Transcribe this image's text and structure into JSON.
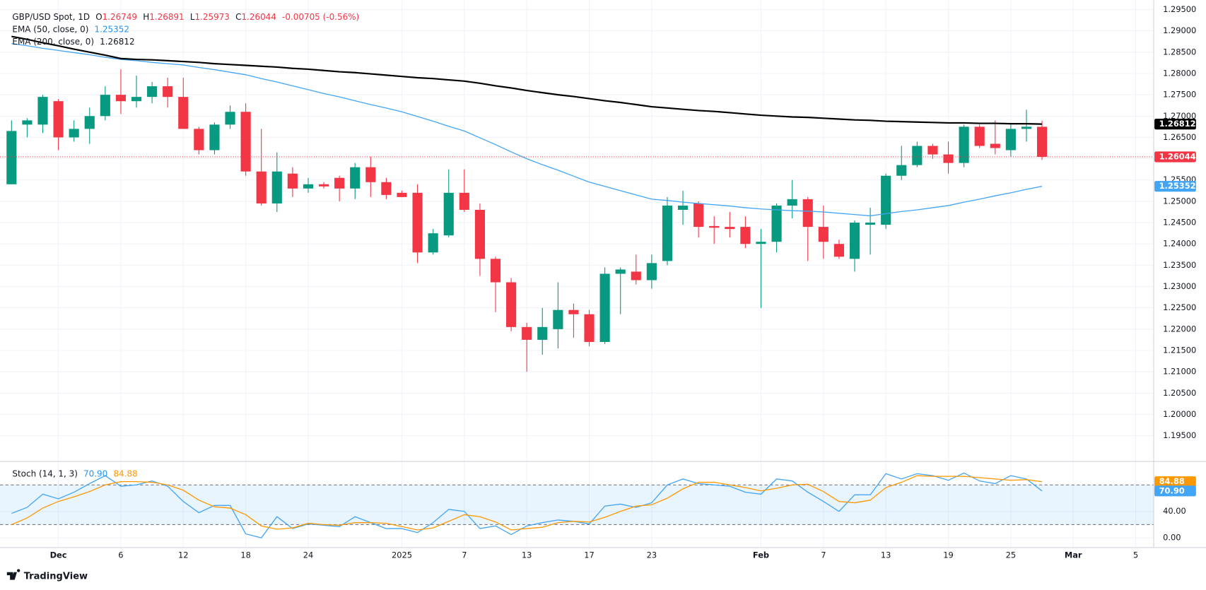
{
  "chart_data": [
    {
      "type": "candlestick",
      "title": "GBP/USD Spot, 1D",
      "legend_keys": [
        "O",
        "H",
        "L",
        "C"
      ],
      "change": "-0.00705 (-0.56%)",
      "categories": [
        null,
        null,
        null,
        "Dec",
        null,
        null,
        null,
        "6",
        null,
        null,
        null,
        "12",
        null,
        null,
        null,
        "18",
        null,
        null,
        null,
        "24",
        null,
        null,
        null,
        null,
        null,
        "2025",
        null,
        null,
        null,
        "7",
        null,
        null,
        null,
        "13",
        null,
        null,
        null,
        "17",
        null,
        null,
        null,
        "23",
        null,
        null,
        null,
        null,
        null,
        null,
        "Feb",
        null,
        null,
        null,
        "7",
        null,
        null,
        null,
        "13",
        null,
        null,
        null,
        "19",
        null,
        null,
        null,
        "25",
        null,
        null,
        null,
        "Mar",
        null,
        null,
        null,
        "5"
      ],
      "open": [
        1.254,
        1.268,
        1.268,
        1.2735,
        1.265,
        1.267,
        1.27,
        1.275,
        1.2735,
        1.2745,
        1.277,
        1.2745,
        1.267,
        1.262,
        1.268,
        1.271,
        1.257,
        1.2495,
        1.2565,
        1.253,
        1.254,
        1.2555,
        1.253,
        1.258,
        1.2545,
        1.252,
        1.252,
        1.238,
        1.242,
        1.252,
        1.248,
        1.2365,
        1.231,
        1.2205,
        1.2175,
        1.22,
        1.2245,
        1.2235,
        1.217,
        1.233,
        1.2335,
        1.2315,
        1.236,
        1.248,
        1.2495,
        1.2442,
        1.244,
        1.244,
        1.24,
        1.2405,
        1.249,
        1.2505,
        1.244,
        1.24,
        1.2365,
        1.2445,
        1.2445,
        1.256,
        1.2585,
        1.263,
        1.261,
        1.259,
        1.2675,
        1.2635,
        1.262,
        1.267,
        1.26749,
        null,
        null,
        null,
        null,
        null,
        null
      ],
      "high": [
        1.269,
        1.2695,
        1.275,
        1.274,
        1.269,
        1.272,
        1.277,
        1.281,
        1.2795,
        1.278,
        1.279,
        1.279,
        1.2675,
        1.2685,
        1.2725,
        1.273,
        1.267,
        1.2615,
        1.258,
        1.2555,
        1.2545,
        1.256,
        1.259,
        1.2605,
        1.2555,
        1.2525,
        1.254,
        1.2435,
        1.2575,
        1.2575,
        1.2495,
        1.237,
        1.232,
        1.2215,
        1.225,
        1.231,
        1.226,
        1.2245,
        1.2345,
        1.2345,
        1.2375,
        1.2375,
        1.251,
        1.2525,
        1.25,
        1.2465,
        1.2475,
        1.2465,
        1.2435,
        1.2495,
        1.255,
        1.251,
        1.249,
        1.241,
        1.2455,
        1.2485,
        1.2565,
        1.263,
        1.264,
        1.2635,
        1.264,
        1.268,
        1.268,
        1.269,
        1.268,
        1.2715,
        1.26891,
        null,
        null,
        null,
        null,
        null,
        null
      ],
      "low": [
        1.254,
        1.265,
        1.266,
        1.262,
        1.264,
        1.2635,
        1.269,
        1.2705,
        1.272,
        1.273,
        1.272,
        1.267,
        1.261,
        1.261,
        1.267,
        1.256,
        1.249,
        1.2475,
        1.251,
        1.252,
        1.253,
        1.25,
        1.2505,
        1.251,
        1.2505,
        1.251,
        1.2355,
        1.2375,
        1.2415,
        1.2475,
        1.2325,
        1.224,
        1.2195,
        1.21,
        1.214,
        1.2155,
        1.218,
        1.216,
        1.2165,
        1.2235,
        1.2305,
        1.2295,
        1.235,
        1.2445,
        1.2415,
        1.24,
        1.2415,
        1.239,
        1.225,
        1.238,
        1.246,
        1.236,
        1.2365,
        1.2365,
        1.2335,
        1.2375,
        1.2435,
        1.255,
        1.258,
        1.26,
        1.2565,
        1.258,
        1.2625,
        1.261,
        1.2605,
        1.264,
        1.25973,
        null,
        null,
        null,
        null,
        null,
        null
      ],
      "close": [
        1.2665,
        1.269,
        1.2745,
        1.265,
        1.267,
        1.27,
        1.275,
        1.2735,
        1.2745,
        1.277,
        1.2745,
        1.267,
        1.262,
        1.268,
        1.271,
        1.257,
        1.2495,
        1.257,
        1.253,
        1.254,
        1.2535,
        1.253,
        1.258,
        1.2545,
        1.2515,
        1.251,
        1.238,
        1.2425,
        1.252,
        1.248,
        1.2365,
        1.231,
        1.2205,
        1.2175,
        1.2205,
        1.2245,
        1.2235,
        1.217,
        1.233,
        1.234,
        1.2315,
        1.2355,
        1.249,
        1.249,
        1.244,
        1.2438,
        1.2435,
        1.24,
        1.2405,
        1.249,
        1.2505,
        1.244,
        1.2405,
        1.237,
        1.245,
        1.245,
        1.256,
        1.2585,
        1.263,
        1.261,
        1.259,
        1.2675,
        1.263,
        1.2625,
        1.267,
        1.2675,
        1.26044,
        null,
        null,
        null,
        null,
        null,
        null
      ],
      "up_color": "#089981",
      "down_color": "#f23645",
      "series": [
        {
          "name": "EMA (50, close, 0)",
          "color": "#42a5f5",
          "values": [
            1.287,
            1.2865,
            1.2859,
            1.2854,
            1.2849,
            1.2844,
            1.2838,
            1.2833,
            1.283,
            1.2826,
            1.2823,
            1.282,
            1.2814,
            1.2809,
            1.2803,
            1.2797,
            1.2788,
            1.278,
            1.2771,
            1.2762,
            1.2753,
            1.2745,
            1.2736,
            1.2727,
            1.2719,
            1.271,
            1.2699,
            1.2688,
            1.2676,
            1.2665,
            1.2649,
            1.2633,
            1.2616,
            1.26,
            1.2586,
            1.2573,
            1.2559,
            1.2545,
            1.2535,
            1.2525,
            1.2515,
            1.2505,
            1.2502,
            1.2498,
            1.2495,
            1.2492,
            1.2489,
            1.2485,
            1.2482,
            1.248,
            1.2478,
            1.2477,
            1.2475,
            1.2472,
            1.2469,
            1.2466,
            1.2471,
            1.2476,
            1.248,
            1.2485,
            1.249,
            1.2498,
            1.2505,
            1.2513,
            1.252,
            1.2528,
            1.25352,
            null,
            null,
            null,
            null,
            null,
            null
          ]
        },
        {
          "name": "EMA (200, close, 0)",
          "color": "#000000",
          "values": [
            1.2887,
            1.288,
            1.2872,
            1.2865,
            1.2857,
            1.285,
            1.2843,
            1.2835,
            1.2833,
            1.2832,
            1.283,
            1.2828,
            1.2826,
            1.2823,
            1.2821,
            1.2819,
            1.2817,
            1.2815,
            1.2812,
            1.281,
            1.2807,
            1.2804,
            1.2802,
            1.2799,
            1.2796,
            1.2793,
            1.279,
            1.2788,
            1.2785,
            1.2782,
            1.2777,
            1.2771,
            1.2766,
            1.276,
            1.2755,
            1.275,
            1.2746,
            1.2741,
            1.2736,
            1.2732,
            1.2727,
            1.2722,
            1.2719,
            1.2716,
            1.2713,
            1.2711,
            1.2708,
            1.2705,
            1.2702,
            1.27,
            1.2698,
            1.2697,
            1.2695,
            1.2693,
            1.2691,
            1.269,
            1.2688,
            1.2687,
            1.2686,
            1.2685,
            1.2684,
            1.2684,
            1.2683,
            1.2683,
            1.2682,
            1.2682,
            1.26812,
            null,
            null,
            null,
            null,
            null,
            null
          ]
        }
      ],
      "ylim": [
        1.1895,
        1.2972
      ],
      "yticks": [
        {
          "value": 1.195,
          "label": "1.19500"
        },
        {
          "value": 1.2,
          "label": "1.20000"
        },
        {
          "value": 1.205,
          "label": "1.20500"
        },
        {
          "value": 1.21,
          "label": "1.21000"
        },
        {
          "value": 1.215,
          "label": "1.21500"
        },
        {
          "value": 1.22,
          "label": "1.22000"
        },
        {
          "value": 1.225,
          "label": "1.22500"
        },
        {
          "value": 1.23,
          "label": "1.23000"
        },
        {
          "value": 1.235,
          "label": "1.23500"
        },
        {
          "value": 1.24,
          "label": "1.24000"
        },
        {
          "value": 1.245,
          "label": "1.24500"
        },
        {
          "value": 1.25,
          "label": "1.25000"
        },
        {
          "value": 1.255,
          "label": "1.25500"
        },
        {
          "value": 1.26,
          "label": "1.26000"
        },
        {
          "value": 1.265,
          "label": "1.26500"
        },
        {
          "value": 1.27,
          "label": "1.27000"
        },
        {
          "value": 1.275,
          "label": "1.27500"
        },
        {
          "value": 1.28,
          "label": "1.28000"
        },
        {
          "value": 1.285,
          "label": "1.28500"
        },
        {
          "value": 1.29,
          "label": "1.29000"
        },
        {
          "value": 1.295,
          "label": "1.29500"
        }
      ],
      "grid": true
    },
    {
      "type": "line",
      "title": "Stoch (14, 1, 3)",
      "series": [
        {
          "color": "#42a5f5",
          "values": [
            37,
            46,
            66,
            59,
            69,
            82,
            94,
            78,
            80,
            86,
            78,
            55,
            38,
            49,
            49,
            6,
            0,
            32,
            14,
            21,
            19,
            17,
            32,
            23,
            14,
            14,
            8,
            23,
            43,
            40,
            14,
            18,
            5,
            18,
            23,
            27,
            25,
            21,
            48,
            51,
            46,
            53,
            80,
            89,
            82,
            80,
            78,
            69,
            66,
            89,
            86,
            69,
            55,
            40,
            65,
            65,
            97,
            89,
            97,
            94,
            87,
            98,
            86,
            82,
            94,
            89,
            70.9,
            null,
            null,
            null,
            null,
            null,
            null
          ],
          "value_labels": [
            null,
            null,
            null,
            null,
            null,
            null,
            null,
            null,
            null,
            null,
            null,
            null,
            null,
            null,
            null,
            null,
            null,
            null,
            null,
            null,
            null,
            null,
            null,
            null,
            null,
            null,
            null,
            null,
            null,
            null,
            null,
            null,
            null,
            null,
            null,
            null,
            null,
            null,
            null,
            null,
            null,
            null,
            null,
            null,
            null,
            null,
            null,
            null,
            null,
            null,
            null,
            null,
            null,
            null,
            null,
            null,
            null,
            null,
            null,
            null,
            null,
            null,
            null,
            null,
            null,
            null,
            "70.90",
            null,
            null,
            null,
            null,
            null,
            null
          ]
        },
        {
          "color": "#ff9800",
          "values": [
            20,
            30,
            45,
            55,
            62,
            70,
            80,
            85,
            85,
            84,
            80,
            72,
            57,
            47,
            45,
            35,
            18,
            13,
            15,
            22,
            20,
            19,
            23,
            23,
            22,
            17,
            12,
            15,
            25,
            35,
            32,
            24,
            12,
            14,
            16,
            23,
            25,
            24,
            31,
            40,
            48,
            50,
            60,
            74,
            84,
            84,
            80,
            76,
            71,
            75,
            80,
            81,
            70,
            55,
            53,
            57,
            76,
            84,
            94,
            93,
            93,
            93,
            91,
            89,
            87,
            88,
            84.88,
            null,
            null,
            null,
            null,
            null,
            null
          ],
          "value_labels": [
            null,
            null,
            null,
            null,
            null,
            null,
            null,
            null,
            null,
            null,
            null,
            null,
            null,
            null,
            null,
            null,
            null,
            null,
            null,
            null,
            null,
            null,
            null,
            null,
            null,
            null,
            null,
            null,
            null,
            null,
            null,
            null,
            null,
            null,
            null,
            null,
            null,
            null,
            null,
            null,
            null,
            null,
            null,
            null,
            null,
            null,
            null,
            null,
            null,
            null,
            null,
            null,
            null,
            null,
            null,
            null,
            null,
            null,
            null,
            null,
            null,
            null,
            null,
            null,
            null,
            null,
            "84.88",
            null,
            null,
            null,
            null,
            null,
            null
          ]
        }
      ],
      "bands": [
        20,
        80
      ],
      "ylim": [
        -10,
        112
      ],
      "yticks": [
        {
          "value": 0,
          "label": "0.00"
        },
        {
          "value": 40,
          "label": "40.00"
        }
      ],
      "grid": true
    }
  ],
  "brand": "TradingView"
}
